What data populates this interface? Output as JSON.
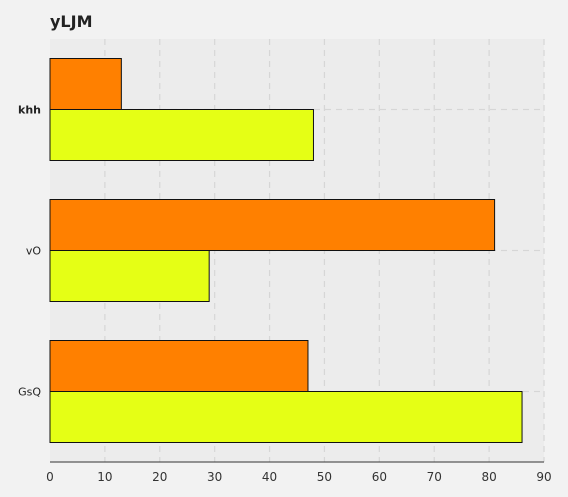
{
  "chart_data": {
    "type": "bar",
    "orientation": "horizontal",
    "title": "yLJM",
    "xlabel": "",
    "ylabel": "",
    "categories": [
      "khh",
      "vO",
      "GsQ"
    ],
    "series": [
      {
        "color": "#ff8000",
        "values": [
          13,
          81,
          47
        ]
      },
      {
        "color": "#e5ff15",
        "values": [
          48,
          29,
          86
        ]
      }
    ],
    "xlim": [
      0,
      90
    ],
    "x_ticks": [
      0,
      10,
      20,
      30,
      40,
      50,
      60,
      70,
      80,
      90
    ],
    "grid": true,
    "legend": "none",
    "plot_background": "#ececec",
    "page_background": "#f2f2f2"
  }
}
